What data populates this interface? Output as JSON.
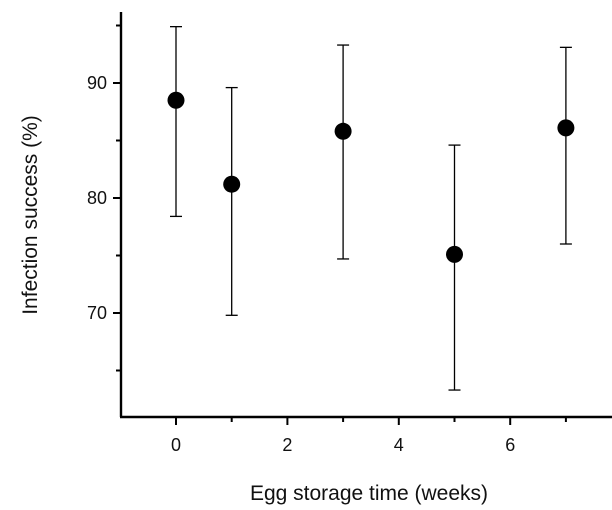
{
  "chart_data": {
    "type": "scatter",
    "title": "",
    "xlabel": "Egg storage time (weeks)",
    "ylabel": "Infection success (%)",
    "xlim": [
      -1,
      7.8
    ],
    "ylim": [
      61,
      96
    ],
    "x_ticks": [
      0,
      2,
      4,
      6
    ],
    "x_tick_labels": [
      "0",
      "2",
      "4",
      "6"
    ],
    "x_minor_ticks": [
      1,
      3,
      5,
      7
    ],
    "y_ticks": [
      70,
      80,
      90
    ],
    "y_tick_labels": [
      "70",
      "80",
      "90"
    ],
    "y_minor_ticks": [
      65,
      75,
      85,
      95
    ],
    "grid": false,
    "marker_color": "#000000",
    "points": [
      {
        "x": 0,
        "y": 88.5,
        "err_low": 78.4,
        "err_high": 94.9
      },
      {
        "x": 1,
        "y": 81.2,
        "err_low": 69.8,
        "err_high": 89.6
      },
      {
        "x": 3,
        "y": 85.8,
        "err_low": 74.7,
        "err_high": 93.3
      },
      {
        "x": 5,
        "y": 75.1,
        "err_low": 63.3,
        "err_high": 84.6
      },
      {
        "x": 7,
        "y": 86.1,
        "err_low": 76.0,
        "err_high": 93.1
      }
    ]
  }
}
